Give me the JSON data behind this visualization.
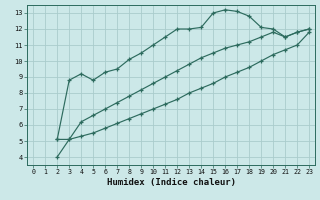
{
  "xlabel": "Humidex (Indice chaleur)",
  "bg_color": "#cce8e8",
  "grid_color": "#aacccc",
  "line_color": "#2d6b5e",
  "xlim": [
    -0.5,
    23.5
  ],
  "ylim": [
    3.5,
    13.5
  ],
  "xticks": [
    0,
    1,
    2,
    3,
    4,
    5,
    6,
    7,
    8,
    9,
    10,
    11,
    12,
    13,
    14,
    15,
    16,
    17,
    18,
    19,
    20,
    21,
    22,
    23
  ],
  "yticks": [
    4,
    5,
    6,
    7,
    8,
    9,
    10,
    11,
    12,
    13
  ],
  "series": [
    [
      [
        2,
        5.1
      ],
      [
        3,
        8.8
      ],
      [
        4,
        9.2
      ],
      [
        5,
        8.8
      ],
      [
        6,
        9.3
      ],
      [
        7,
        9.5
      ],
      [
        8,
        10.1
      ],
      [
        9,
        10.5
      ],
      [
        10,
        11.0
      ],
      [
        11,
        11.5
      ],
      [
        12,
        12.0
      ],
      [
        13,
        12.0
      ],
      [
        14,
        12.1
      ],
      [
        15,
        13.0
      ],
      [
        16,
        13.2
      ],
      [
        17,
        13.1
      ],
      [
        18,
        12.8
      ],
      [
        19,
        12.1
      ],
      [
        20,
        12.0
      ],
      [
        21,
        11.5
      ],
      [
        22,
        11.8
      ],
      [
        23,
        12.0
      ]
    ],
    [
      [
        2,
        5.1
      ],
      [
        3,
        5.1
      ],
      [
        4,
        6.2
      ],
      [
        5,
        6.6
      ],
      [
        6,
        7.0
      ],
      [
        7,
        7.4
      ],
      [
        8,
        7.8
      ],
      [
        9,
        8.2
      ],
      [
        10,
        8.6
      ],
      [
        11,
        9.0
      ],
      [
        12,
        9.4
      ],
      [
        13,
        9.8
      ],
      [
        14,
        10.2
      ],
      [
        15,
        10.5
      ],
      [
        16,
        10.8
      ],
      [
        17,
        11.0
      ],
      [
        18,
        11.2
      ],
      [
        19,
        11.5
      ],
      [
        20,
        11.8
      ],
      [
        21,
        11.5
      ],
      [
        22,
        11.8
      ],
      [
        23,
        12.0
      ]
    ],
    [
      [
        2,
        4.0
      ],
      [
        3,
        5.1
      ],
      [
        4,
        5.3
      ],
      [
        5,
        5.5
      ],
      [
        6,
        5.8
      ],
      [
        7,
        6.1
      ],
      [
        8,
        6.4
      ],
      [
        9,
        6.7
      ],
      [
        10,
        7.0
      ],
      [
        11,
        7.3
      ],
      [
        12,
        7.6
      ],
      [
        13,
        8.0
      ],
      [
        14,
        8.3
      ],
      [
        15,
        8.6
      ],
      [
        16,
        9.0
      ],
      [
        17,
        9.3
      ],
      [
        18,
        9.6
      ],
      [
        19,
        10.0
      ],
      [
        20,
        10.4
      ],
      [
        21,
        10.7
      ],
      [
        22,
        11.0
      ],
      [
        23,
        11.8
      ]
    ]
  ]
}
